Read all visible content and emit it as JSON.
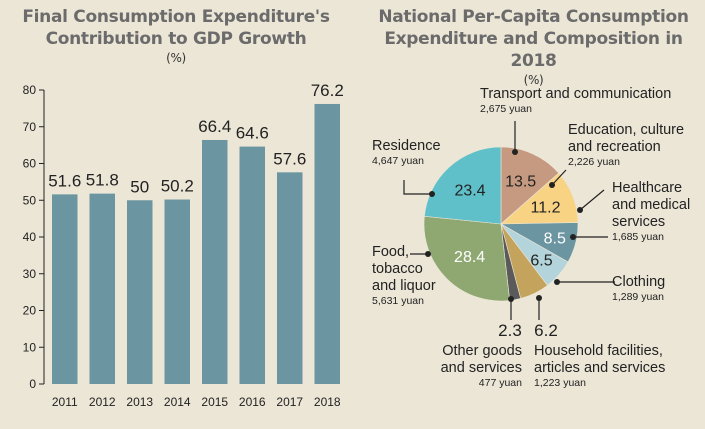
{
  "chart_data": [
    {
      "type": "bar",
      "title": "Final Consumption Expenditure's Contribution to GDP Growth",
      "unit": "(%)",
      "categories": [
        "2011",
        "2012",
        "2013",
        "2014",
        "2015",
        "2016",
        "2017",
        "2018"
      ],
      "values": [
        51.6,
        51.8,
        50,
        50.2,
        66.4,
        64.6,
        57.6,
        76.2
      ],
      "value_labels": [
        "51.6",
        "51.8",
        "50",
        "50.2",
        "66.4",
        "64.6",
        "57.6",
        "76.2"
      ],
      "yticks": [
        0,
        10,
        20,
        30,
        40,
        50,
        60,
        70,
        80
      ],
      "ylim": [
        0,
        80
      ],
      "bar_color": "#6b96a1"
    },
    {
      "type": "pie",
      "title": "National Per-Capita Consumption Expenditure and Composition in 2018",
      "unit": "(%)",
      "slices": [
        {
          "label": "Transport and communication",
          "value": 13.5,
          "value_label": "13.5",
          "amount": "2,675 yuan",
          "color": "#c69a80"
        },
        {
          "label": "Education, culture and recreation",
          "value": 11.2,
          "value_label": "11.2",
          "amount": "2,226 yuan",
          "color": "#f7d383"
        },
        {
          "label": "Healthcare and medical services",
          "value": 8.5,
          "value_label": "8.5",
          "amount": "1,685 yuan",
          "color": "#6b96a1"
        },
        {
          "label": "Clothing",
          "value": 6.5,
          "value_label": "6.5",
          "amount": "1,289 yuan",
          "color": "#b3d4da"
        },
        {
          "label": "Household facilities, articles and services",
          "value": 6.2,
          "value_label": "6.2",
          "amount": "1,223 yuan",
          "color": "#c4a35d"
        },
        {
          "label": "Other goods and services",
          "value": 2.3,
          "value_label": "2.3",
          "amount": "477 yuan",
          "color": "#5a5a5a"
        },
        {
          "label": "Food, tobacco and liquor",
          "value": 28.4,
          "value_label": "28.4",
          "amount": "5,631 yuan",
          "color": "#8fa872"
        },
        {
          "label": "Residence",
          "value": 23.4,
          "value_label": "23.4",
          "amount": "4,647 yuan",
          "color": "#5fc0c9"
        }
      ]
    }
  ],
  "legend_text": {
    "transport": {
      "lines": [
        "Transport and communication"
      ],
      "amount": "2,675 yuan"
    },
    "education": {
      "lines": [
        "Education, culture",
        "and recreation"
      ],
      "amount": "2,226 yuan"
    },
    "healthcare": {
      "lines": [
        "Healthcare",
        "and medical",
        "services"
      ],
      "amount": "1,685 yuan"
    },
    "clothing": {
      "lines": [
        "Clothing"
      ],
      "amount": "1,289 yuan"
    },
    "household": {
      "lines": [
        "Household facilities,",
        "articles and services"
      ],
      "amount": "1,223 yuan"
    },
    "other": {
      "lines": [
        "Other goods",
        "and services"
      ],
      "amount": "477 yuan"
    },
    "food": {
      "lines": [
        "Food,",
        "tobacco",
        "and liquor"
      ],
      "amount": "5,631 yuan"
    },
    "residence": {
      "lines": [
        "Residence"
      ],
      "amount": "4,647 yuan"
    }
  }
}
